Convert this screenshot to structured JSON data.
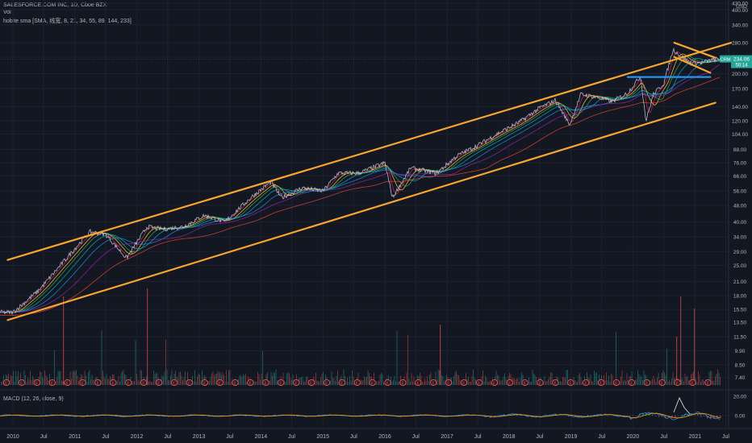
{
  "chart_data": {
    "type": "line",
    "symbol_header": "SALESFORCE.COM INC, 1D, Cboe BZX",
    "volume_label": "Vol",
    "indicator_label": "hobite sma [SMA, 线宽, 8, 21, 34, 55, 89, 144, 233]",
    "macd_label": "MACD (12, 26, close, 9)",
    "currency": "USD",
    "y_scale": "log",
    "ylim": [
      7,
      430
    ],
    "y_ticks": [
      "430.00",
      "400.00",
      "340.00",
      "280.00",
      "240.00",
      "200.00",
      "170.00",
      "140.00",
      "120.00",
      "104.00",
      "88.00",
      "76.00",
      "66.00",
      "56.00",
      "48.00",
      "40.00",
      "34.00",
      "29.00",
      "25.00",
      "21.00",
      "18.00",
      "15.50",
      "13.50",
      "11.50",
      "9.90",
      "8.50",
      "7.40"
    ],
    "x_ticks": [
      "2010",
      "Jul",
      "2011",
      "Jul",
      "2012",
      "Jul",
      "2013",
      "Jul",
      "2014",
      "Jul",
      "2015",
      "Jul",
      "2016",
      "Jul",
      "2017",
      "Jul",
      "2018",
      "Jul",
      "2019",
      "Jul",
      "2020",
      "Jul",
      "2021",
      "Jul"
    ],
    "xlim": [
      "2010-01-01",
      "2021-08-01"
    ],
    "symbol_tag": "CRM",
    "last_price": "234.06",
    "countdown": "50:14",
    "macd_ticks": [
      "20.00",
      "0.00"
    ],
    "earnings_marker": "E",
    "series": [
      {
        "color": "#d1d4dc",
        "x": [
          "2010-01-01",
          "2010-06-01",
          "2011-01-01",
          "2011-04-01",
          "2011-07-01",
          "2011-11-01",
          "2012-03-01",
          "2012-06-01",
          "2012-10-01",
          "2013-02-01",
          "2013-06-01",
          "2013-11-01",
          "2014-03-01",
          "2014-05-01",
          "2014-09-01",
          "2015-01-01",
          "2015-04-01",
          "2015-08-01",
          "2016-01-01",
          "2016-02-15",
          "2016-06-01",
          "2016-11-01",
          "2017-03-01",
          "2017-07-01",
          "2017-11-01",
          "2018-03-01",
          "2018-07-01",
          "2018-10-01",
          "2018-12-25",
          "2019-03-01",
          "2019-06-01",
          "2019-09-01",
          "2019-12-01",
          "2020-02-15",
          "2020-03-18",
          "2020-05-01",
          "2020-07-01",
          "2020-08-25",
          "2020-10-01",
          "2020-12-01",
          "2021-02-01",
          "2021-05-01"
        ],
        "values": [
          15,
          19,
          30,
          36,
          35,
          27,
          38,
          37,
          38,
          43,
          40,
          52,
          62,
          52,
          58,
          56,
          68,
          68,
          76,
          52,
          72,
          68,
          82,
          92,
          105,
          118,
          138,
          150,
          115,
          160,
          155,
          148,
          162,
          195,
          120,
          160,
          180,
          260,
          245,
          225,
          225,
          234
        ]
      }
    ],
    "trendlines": [
      {
        "color": "#f7a531",
        "x": [
          "2009-12-01",
          "2021-08-01"
        ],
        "values": [
          26.5,
          280
        ]
      },
      {
        "color": "#f7a531",
        "x": [
          "2009-12-01",
          "2021-05-01"
        ],
        "values": [
          13.8,
          146
        ]
      },
      {
        "color": "#f7a531",
        "x": [
          "2020-09-01",
          "2021-05-01"
        ],
        "values": [
          280,
          238
        ]
      },
      {
        "color": "#f7a531",
        "x": [
          "2020-09-01",
          "2021-04-01"
        ],
        "values": [
          240,
          202
        ]
      },
      {
        "color": "#2196f3",
        "x": [
          "2019-12-01",
          "2021-04-01"
        ],
        "values": [
          193,
          193
        ]
      }
    ],
    "grid": true,
    "legend": "top-left"
  }
}
